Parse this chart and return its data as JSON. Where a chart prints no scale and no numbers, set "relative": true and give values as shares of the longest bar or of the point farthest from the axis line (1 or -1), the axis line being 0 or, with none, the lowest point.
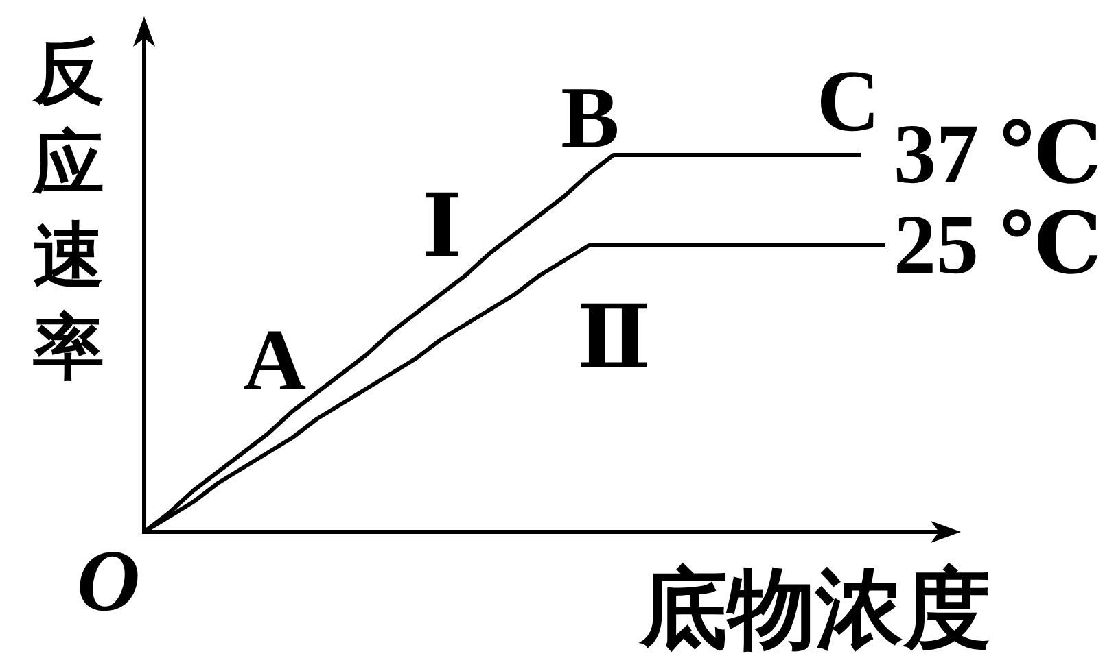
{
  "chart_data": {
    "type": "line",
    "relative": true,
    "xlabel": "底物浓度",
    "ylabel": "反应速率",
    "categories": [
      null,
      null,
      null,
      null,
      null,
      null,
      null,
      null,
      null,
      null,
      null,
      null,
      null,
      null,
      null,
      null,
      null,
      null,
      null,
      null,
      null,
      null,
      null,
      null,
      null,
      null,
      null,
      null,
      null,
      null,
      null
    ],
    "series": [
      {
        "name": "37 ℃",
        "color": "#000000",
        "values": [
          0,
          0.05,
          0.11,
          0.16,
          0.21,
          0.26,
          0.32,
          0.37,
          0.42,
          0.47,
          0.53,
          0.58,
          0.63,
          0.68,
          0.74,
          0.79,
          0.84,
          0.89,
          0.95,
          1,
          1,
          1,
          1,
          1,
          1,
          1,
          1,
          1,
          1,
          1,
          null
        ]
      },
      {
        "name": "25 ℃",
        "color": "#000000",
        "values": [
          0,
          0.04,
          0.08,
          0.13,
          0.17,
          0.21,
          0.25,
          0.3,
          0.34,
          0.38,
          0.42,
          0.46,
          0.51,
          0.55,
          0.59,
          0.63,
          0.68,
          0.72,
          0.76,
          0.76,
          0.76,
          0.76,
          0.76,
          0.76,
          0.76,
          0.76,
          0.76,
          0.76,
          0.76,
          0.76,
          0.76
        ]
      }
    ],
    "annotations": [
      "O",
      "A",
      "B",
      "C",
      "Ⅰ",
      "Ⅱ"
    ]
  }
}
